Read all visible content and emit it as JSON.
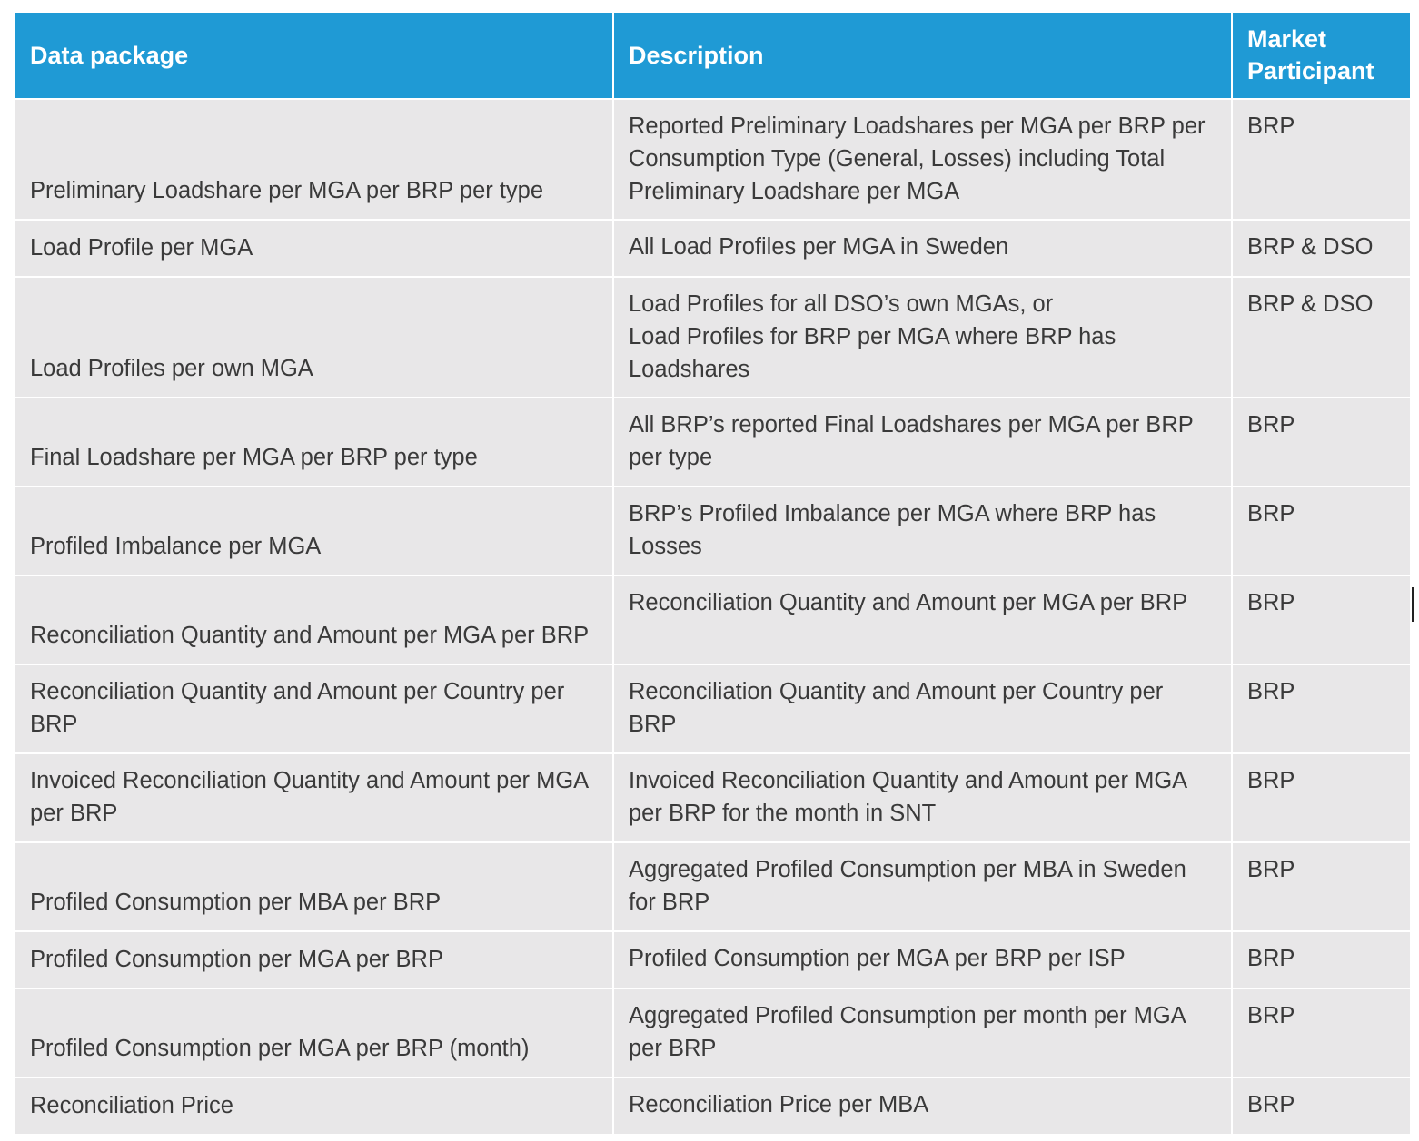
{
  "table": {
    "headers": {
      "package": "Data package",
      "description": "Description",
      "participant": "Market Participant"
    },
    "rows": [
      {
        "package": "Preliminary Loadshare per MGA per BRP per type",
        "description": "Reported Preliminary Loadshares per MGA per BRP per Consumption Type (General, Losses) including Total Preliminary Loadshare per MGA",
        "participant": "BRP"
      },
      {
        "package": "Load Profile per MGA",
        "description": "All Load Profiles per MGA in Sweden",
        "participant": "BRP & DSO"
      },
      {
        "package": "Load Profiles per own MGA",
        "description": "Load Profiles for all DSO’s own MGAs, or\nLoad Profiles for BRP per MGA where BRP has Loadshares",
        "participant": "BRP & DSO"
      },
      {
        "package": "Final Loadshare per MGA per BRP per type",
        "description": "All BRP’s reported Final Loadshares per MGA per BRP per type",
        "participant": "BRP"
      },
      {
        "package": "Profiled Imbalance per MGA",
        "description": "BRP’s Profiled Imbalance per MGA where BRP has Losses",
        "participant": "BRP"
      },
      {
        "package": "Reconciliation Quantity and Amount per MGA per BRP",
        "description": "Reconciliation Quantity and Amount per MGA per BRP",
        "participant": "BRP"
      },
      {
        "package": "Reconciliation Quantity and Amount per Country per BRP",
        "description": "Reconciliation Quantity and Amount per Country per BRP",
        "participant": "BRP"
      },
      {
        "package": "Invoiced Reconciliation Quantity and Amount per MGA per BRP",
        "description": "Invoiced Reconciliation Quantity and Amount per MGA per BRP for the month in SNT",
        "participant": "BRP"
      },
      {
        "package": "Profiled Consumption per MBA per BRP",
        "description": "Aggregated Profiled Consumption per MBA in Sweden for BRP",
        "participant": "BRP"
      },
      {
        "package": "Profiled Consumption per MGA per BRP",
        "description": "Profiled Consumption per MGA per BRP per ISP",
        "participant": "BRP"
      },
      {
        "package": "Profiled Consumption per MGA per BRP (month)",
        "description": "Aggregated Profiled Consumption per month per MGA per BRP",
        "participant": "BRP"
      },
      {
        "package": "Reconciliation Price",
        "description": "Reconciliation Price per MBA",
        "participant": "BRP"
      }
    ]
  }
}
